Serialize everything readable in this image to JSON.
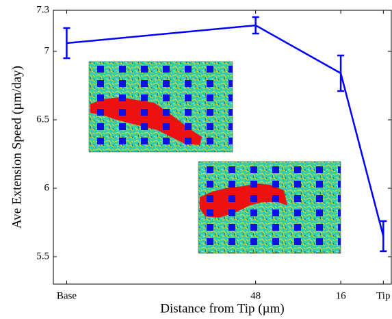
{
  "chart_data": {
    "type": "line",
    "xlabel": "Distance from Tip (µm)",
    "ylabel": "Ave Extension Speed (µm/day)",
    "x": [
      119,
      48,
      16,
      0
    ],
    "series": [
      {
        "color": "#0000ff",
        "values": [
          7.06,
          7.19,
          6.84,
          5.65
        ],
        "errors": [
          0.11,
          0.06,
          0.13,
          0.11
        ]
      }
    ],
    "xlim": [
      124,
      -3
    ],
    "xticks": [
      {
        "value": 119,
        "label": "Base"
      },
      48,
      16,
      {
        "value": 0,
        "label": "Tip"
      }
    ],
    "ylim": [
      5.3,
      7.3
    ],
    "yticks": [
      5.5,
      6,
      6.5,
      7,
      7.3
    ]
  }
}
